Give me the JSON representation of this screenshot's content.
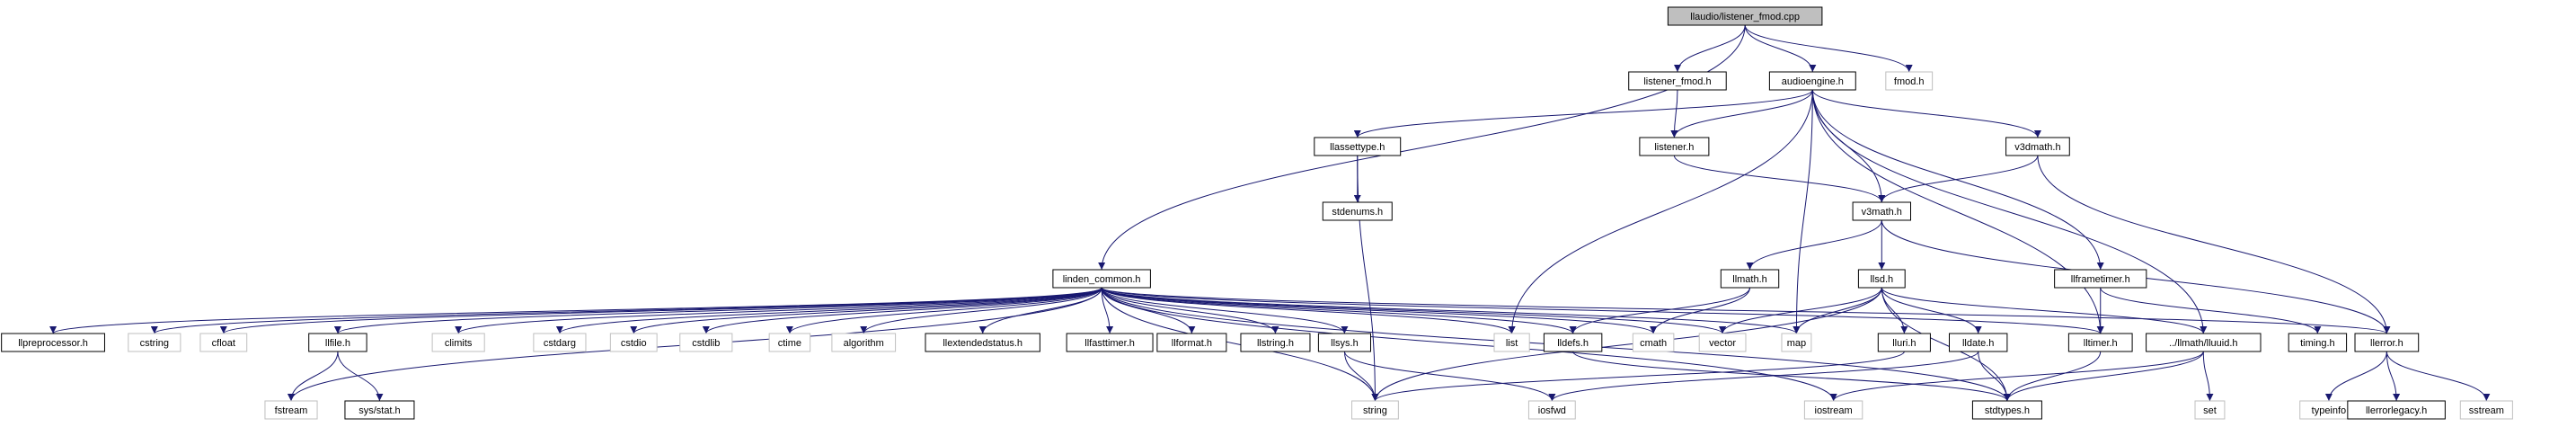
{
  "nodes": [
    {
      "label": "llaudio/listener_fmod.cpp"
    },
    {
      "label": "listener_fmod.h"
    },
    {
      "label": "audioengine.h"
    },
    {
      "label": "fmod.h"
    },
    {
      "label": "llassettype.h"
    },
    {
      "label": "listener.h"
    },
    {
      "label": "v3dmath.h"
    },
    {
      "label": "stdenums.h"
    },
    {
      "label": "v3math.h"
    },
    {
      "label": "linden_common.h"
    },
    {
      "label": "llmath.h"
    },
    {
      "label": "llsd.h"
    },
    {
      "label": "llframetimer.h"
    },
    {
      "label": "llpreprocessor.h"
    },
    {
      "label": "cstring"
    },
    {
      "label": "cfloat"
    },
    {
      "label": "llfile.h"
    },
    {
      "label": "climits"
    },
    {
      "label": "cstdarg"
    },
    {
      "label": "cstdio"
    },
    {
      "label": "cstdlib"
    },
    {
      "label": "ctime"
    },
    {
      "label": "algorithm"
    },
    {
      "label": "llextendedstatus.h"
    },
    {
      "label": "llfasttimer.h"
    },
    {
      "label": "llformat.h"
    },
    {
      "label": "llstring.h"
    },
    {
      "label": "llsys.h"
    },
    {
      "label": "list"
    },
    {
      "label": "lldefs.h"
    },
    {
      "label": "cmath"
    },
    {
      "label": "vector"
    },
    {
      "label": "map"
    },
    {
      "label": "lluri.h"
    },
    {
      "label": "lldate.h"
    },
    {
      "label": "lltimer.h"
    },
    {
      "label": "../llmath/lluuid.h"
    },
    {
      "label": "timing.h"
    },
    {
      "label": "llerror.h"
    },
    {
      "label": "fstream"
    },
    {
      "label": "sys/stat.h"
    },
    {
      "label": "string"
    },
    {
      "label": "iosfwd"
    },
    {
      "label": "iostream"
    },
    {
      "label": "stdtypes.h"
    },
    {
      "label": "set"
    },
    {
      "label": "typeinfo"
    },
    {
      "label": "llerrorlegacy.h"
    },
    {
      "label": "sstream"
    }
  ]
}
